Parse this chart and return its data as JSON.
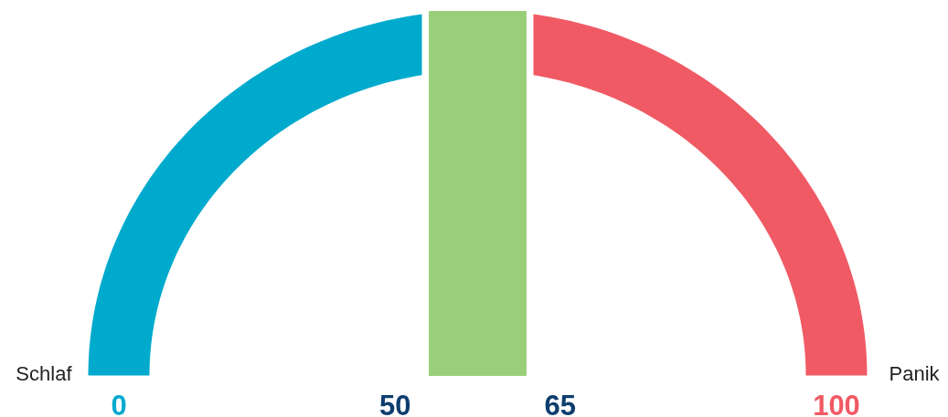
{
  "chart_data": {
    "type": "other",
    "categories": [
      "Schlaf",
      null,
      null,
      "Panik"
    ],
    "values": [
      0,
      50,
      65,
      100
    ],
    "data_labels": true,
    "colors": [
      "#00aacd",
      "#9acf7a",
      "#9acf7a",
      "#f05a64"
    ]
  }
}
